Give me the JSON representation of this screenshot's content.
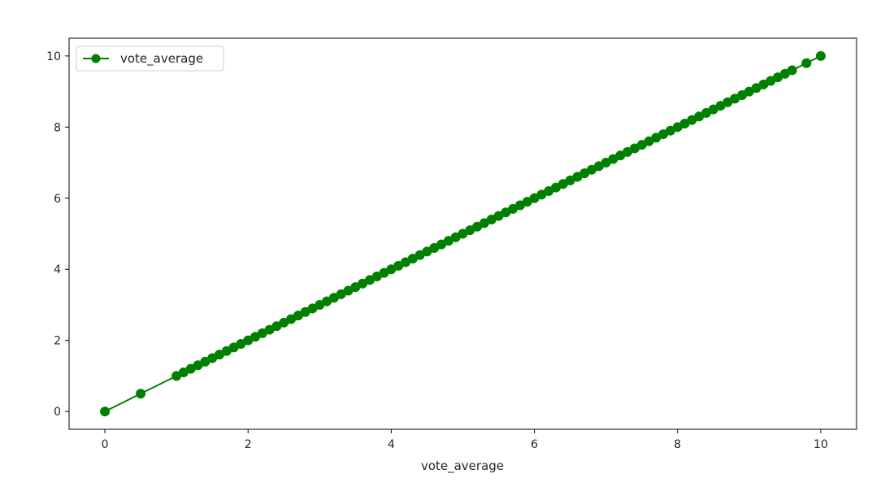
{
  "chart_data": {
    "type": "line",
    "xlabel": "vote_average",
    "ylabel": "",
    "xlim": [
      -0.5,
      10.5
    ],
    "ylim": [
      -0.5,
      10.5
    ],
    "x_ticks": [
      "0",
      "2",
      "4",
      "6",
      "8",
      "10"
    ],
    "y_ticks": [
      "0",
      "2",
      "4",
      "6",
      "8",
      "10"
    ],
    "grid": false,
    "legend_position": "upper-left",
    "series": [
      {
        "name": "vote_average",
        "color": "#008000",
        "marker": "circle",
        "x": [
          0,
          0.5,
          1.0,
          1.1,
          1.2,
          1.3,
          1.4,
          1.5,
          1.6,
          1.7,
          1.8,
          1.9,
          2.0,
          2.1,
          2.2,
          2.3,
          2.4,
          2.5,
          2.6,
          2.7,
          2.8,
          2.9,
          3.0,
          3.1,
          3.2,
          3.3,
          3.4,
          3.5,
          3.6,
          3.7,
          3.8,
          3.9,
          4.0,
          4.1,
          4.2,
          4.3,
          4.4,
          4.5,
          4.6,
          4.7,
          4.8,
          4.9,
          5.0,
          5.1,
          5.2,
          5.3,
          5.4,
          5.5,
          5.6,
          5.7,
          5.8,
          5.9,
          6.0,
          6.1,
          6.2,
          6.3,
          6.4,
          6.5,
          6.6,
          6.7,
          6.8,
          6.9,
          7.0,
          7.1,
          7.2,
          7.3,
          7.4,
          7.5,
          7.6,
          7.7,
          7.8,
          7.9,
          8.0,
          8.1,
          8.2,
          8.3,
          8.4,
          8.5,
          8.6,
          8.7,
          8.8,
          8.9,
          9.0,
          9.1,
          9.2,
          9.3,
          9.4,
          9.5,
          9.6,
          9.8,
          10.0
        ],
        "y": [
          0,
          0.5,
          1.0,
          1.1,
          1.2,
          1.3,
          1.4,
          1.5,
          1.6,
          1.7,
          1.8,
          1.9,
          2.0,
          2.1,
          2.2,
          2.3,
          2.4,
          2.5,
          2.6,
          2.7,
          2.8,
          2.9,
          3.0,
          3.1,
          3.2,
          3.3,
          3.4,
          3.5,
          3.6,
          3.7,
          3.8,
          3.9,
          4.0,
          4.1,
          4.2,
          4.3,
          4.4,
          4.5,
          4.6,
          4.7,
          4.8,
          4.9,
          5.0,
          5.1,
          5.2,
          5.3,
          5.4,
          5.5,
          5.6,
          5.7,
          5.8,
          5.9,
          6.0,
          6.1,
          6.2,
          6.3,
          6.4,
          6.5,
          6.6,
          6.7,
          6.8,
          6.9,
          7.0,
          7.1,
          7.2,
          7.3,
          7.4,
          7.5,
          7.6,
          7.7,
          7.8,
          7.9,
          8.0,
          8.1,
          8.2,
          8.3,
          8.4,
          8.5,
          8.6,
          8.7,
          8.8,
          8.9,
          9.0,
          9.1,
          9.2,
          9.3,
          9.4,
          9.5,
          9.6,
          9.8,
          10.0
        ]
      }
    ]
  }
}
